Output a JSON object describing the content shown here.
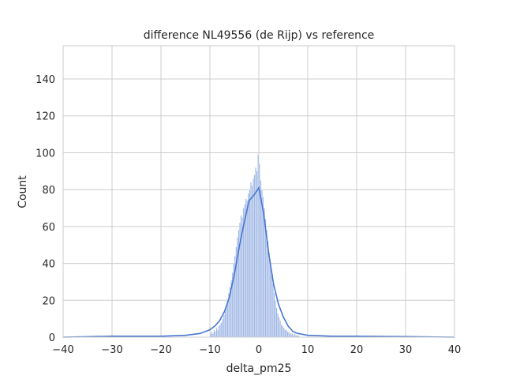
{
  "chart_data": {
    "type": "bar",
    "subtype": "histogram-with-kde",
    "title": "difference NL49556 (de Rijp) vs reference",
    "xlabel": "delta_pm25",
    "ylabel": "Count",
    "xlim": [
      -40,
      40
    ],
    "ylim": [
      0,
      158
    ],
    "xticks": [
      -40,
      -30,
      -20,
      -10,
      0,
      10,
      20,
      30,
      40
    ],
    "yticks": [
      0,
      20,
      40,
      60,
      80,
      100,
      120,
      140
    ],
    "grid": true,
    "legend": "none",
    "bar_color": "#a2b9e6",
    "kde_color": "#4878d0",
    "bin_width": 0.25,
    "bins": {
      "x_start": [
        -10.0,
        -9.75,
        -9.5,
        -9.25,
        -9.0,
        -8.75,
        -8.5,
        -8.25,
        -8.0,
        -7.75,
        -7.5,
        -7.25,
        -7.0,
        -6.75,
        -6.5,
        -6.25,
        -6.0,
        -5.75,
        -5.5,
        -5.25,
        -5.0,
        -4.75,
        -4.5,
        -4.25,
        -4.0,
        -3.75,
        -3.5,
        -3.25,
        -3.0,
        -2.75,
        -2.5,
        -2.25,
        -2.0,
        -1.75,
        -1.5,
        -1.25,
        -1.0,
        -0.75,
        -0.5,
        -0.25,
        0.0,
        0.25,
        0.5,
        0.75,
        1.0,
        1.25,
        1.5,
        1.75,
        2.0,
        2.25,
        2.5,
        2.75,
        3.0,
        3.25,
        3.5,
        3.75,
        4.0,
        4.25,
        4.5,
        4.75,
        5.0,
        5.25,
        5.5,
        5.75,
        6.0,
        6.25,
        6.5,
        6.75,
        7.0,
        7.25,
        7.5,
        7.75,
        8.0
      ],
      "counts": [
        2,
        3,
        2,
        4,
        3,
        5,
        4,
        6,
        7,
        8,
        10,
        12,
        14,
        17,
        20,
        24,
        27,
        31,
        35,
        40,
        44,
        49,
        54,
        58,
        62,
        66,
        65,
        70,
        72,
        75,
        74,
        78,
        80,
        84,
        82,
        86,
        88,
        92,
        90,
        99,
        94,
        85,
        80,
        76,
        70,
        64,
        58,
        52,
        46,
        40,
        34,
        29,
        24,
        20,
        16,
        13,
        11,
        9,
        7,
        6,
        5,
        4,
        4,
        3,
        3,
        2,
        2,
        2,
        1,
        2,
        1,
        1,
        1
      ]
    },
    "kde": {
      "x": [
        -40,
        -30,
        -20,
        -15,
        -12,
        -10,
        -9,
        -8,
        -7,
        -6,
        -5,
        -4,
        -3,
        -2,
        -1,
        0,
        1,
        2,
        3,
        4,
        5,
        6,
        7,
        8,
        10,
        15,
        20,
        30,
        40
      ],
      "y": [
        0,
        0.5,
        0.5,
        1,
        2,
        4,
        6,
        9,
        14,
        22,
        34,
        49,
        62,
        74,
        77,
        81,
        67,
        46,
        29,
        18,
        11,
        6,
        3,
        2,
        1,
        0.5,
        0.5,
        0.3,
        0
      ]
    }
  }
}
